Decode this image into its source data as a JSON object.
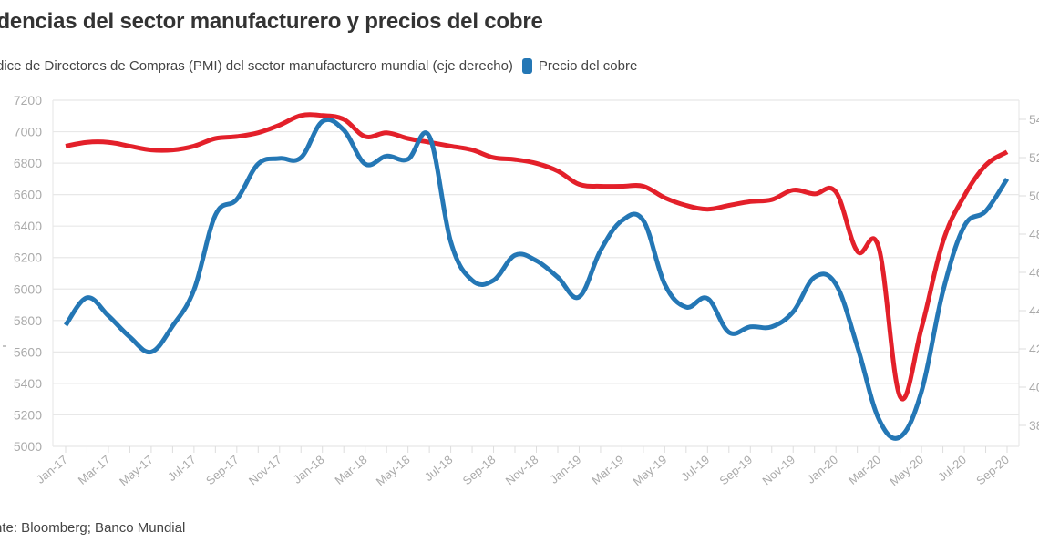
{
  "title": "Tendencias del sector manufacturero y precios del cobre",
  "title_visible": "ndencias del sector manufacturero y precios del cobre",
  "source": "nte: Bloomberg; Banco Mundial",
  "colors": {
    "pmi": "#e3202a",
    "copper": "#2477b5",
    "grid": "#e8e8e8",
    "axis_text": "#aaaaaa"
  },
  "chart_data": {
    "type": "line",
    "title": "Tendencias del sector manufacturero y precios del cobre",
    "xlabel": "",
    "ylabel": "",
    "x": [
      "Jan-17",
      "Feb-17",
      "Mar-17",
      "Apr-17",
      "May-17",
      "Jun-17",
      "Jul-17",
      "Aug-17",
      "Sep-17",
      "Oct-17",
      "Nov-17",
      "Dec-17",
      "Jan-18",
      "Feb-18",
      "Mar-18",
      "Apr-18",
      "May-18",
      "Jun-18",
      "Jul-18",
      "Aug-18",
      "Sep-18",
      "Oct-18",
      "Nov-18",
      "Dec-18",
      "Jan-19",
      "Feb-19",
      "Mar-19",
      "Apr-19",
      "May-19",
      "Jun-19",
      "Jul-19",
      "Aug-19",
      "Sep-19",
      "Oct-19",
      "Nov-19",
      "Dec-19",
      "Jan-20",
      "Feb-20",
      "Mar-20",
      "Apr-20",
      "May-20",
      "Jun-20",
      "Jul-20",
      "Aug-20",
      "Sep-20"
    ],
    "x_tick_labels": [
      "Jan-17",
      "Mar-17",
      "May-17",
      "Jul-17",
      "Sep-17",
      "Nov-17",
      "Jan-18",
      "Mar-18",
      "May-18",
      "Jul-18",
      "Sep-18",
      "Nov-18",
      "Jan-19",
      "Mar-19",
      "May-19",
      "Jul-19",
      "Sep-19",
      "Nov-19",
      "Jan-20",
      "Mar-20",
      "May-20",
      "Jul-20",
      "Sep-20"
    ],
    "y_left": {
      "ylim": [
        5000,
        7200
      ],
      "ticks": [
        5000,
        5200,
        5400,
        5600,
        5800,
        6000,
        6200,
        6400,
        6600,
        6800,
        7000,
        7200
      ]
    },
    "y_right": {
      "ylim": [
        37,
        54.5
      ],
      "ticks": [
        38,
        40,
        42,
        44,
        46,
        48,
        50,
        52,
        54
      ],
      "tick_labels_visible": [
        "38",
        "40",
        "42",
        "44",
        "46",
        "48",
        "50",
        "52",
        "54"
      ]
    },
    "grid": true,
    "legend_position": "top-left",
    "series": [
      {
        "name": "Índice de Directores de Compras (PMI) del sector manufacturero mundial (eje derecho)",
        "legend_label": "dice de Directores de Compras (PMI) del sector manufacturero mundial (eje derecho)",
        "axis": "right",
        "color": "#e3202a",
        "values": [
          52.6,
          52.8,
          52.8,
          52.6,
          52.4,
          52.4,
          52.6,
          53.0,
          53.1,
          53.3,
          53.7,
          54.2,
          54.2,
          54.0,
          53.1,
          53.3,
          53.0,
          52.8,
          52.6,
          52.4,
          52.0,
          51.9,
          51.7,
          51.3,
          50.6,
          50.5,
          50.5,
          50.5,
          49.9,
          49.5,
          49.3,
          49.5,
          49.7,
          49.8,
          50.3,
          50.1,
          50.2,
          47.1,
          47.3,
          39.5,
          43.1,
          47.6,
          50.0,
          51.6,
          52.3
        ]
      },
      {
        "name": "Precio del cobre",
        "legend_label": "Precio del cobre",
        "axis": "left",
        "color": "#2477b5",
        "values": [
          5770,
          5945,
          5830,
          5695,
          5600,
          5765,
          5995,
          6470,
          6570,
          6795,
          6830,
          6835,
          7065,
          7010,
          6795,
          6845,
          6825,
          6970,
          6300,
          6055,
          6055,
          6215,
          6180,
          6075,
          5950,
          6245,
          6435,
          6435,
          6030,
          5885,
          5940,
          5725,
          5760,
          5760,
          5855,
          6075,
          6030,
          5635,
          5175,
          5060,
          5350,
          5985,
          6400,
          6495,
          6700
        ]
      }
    ]
  }
}
